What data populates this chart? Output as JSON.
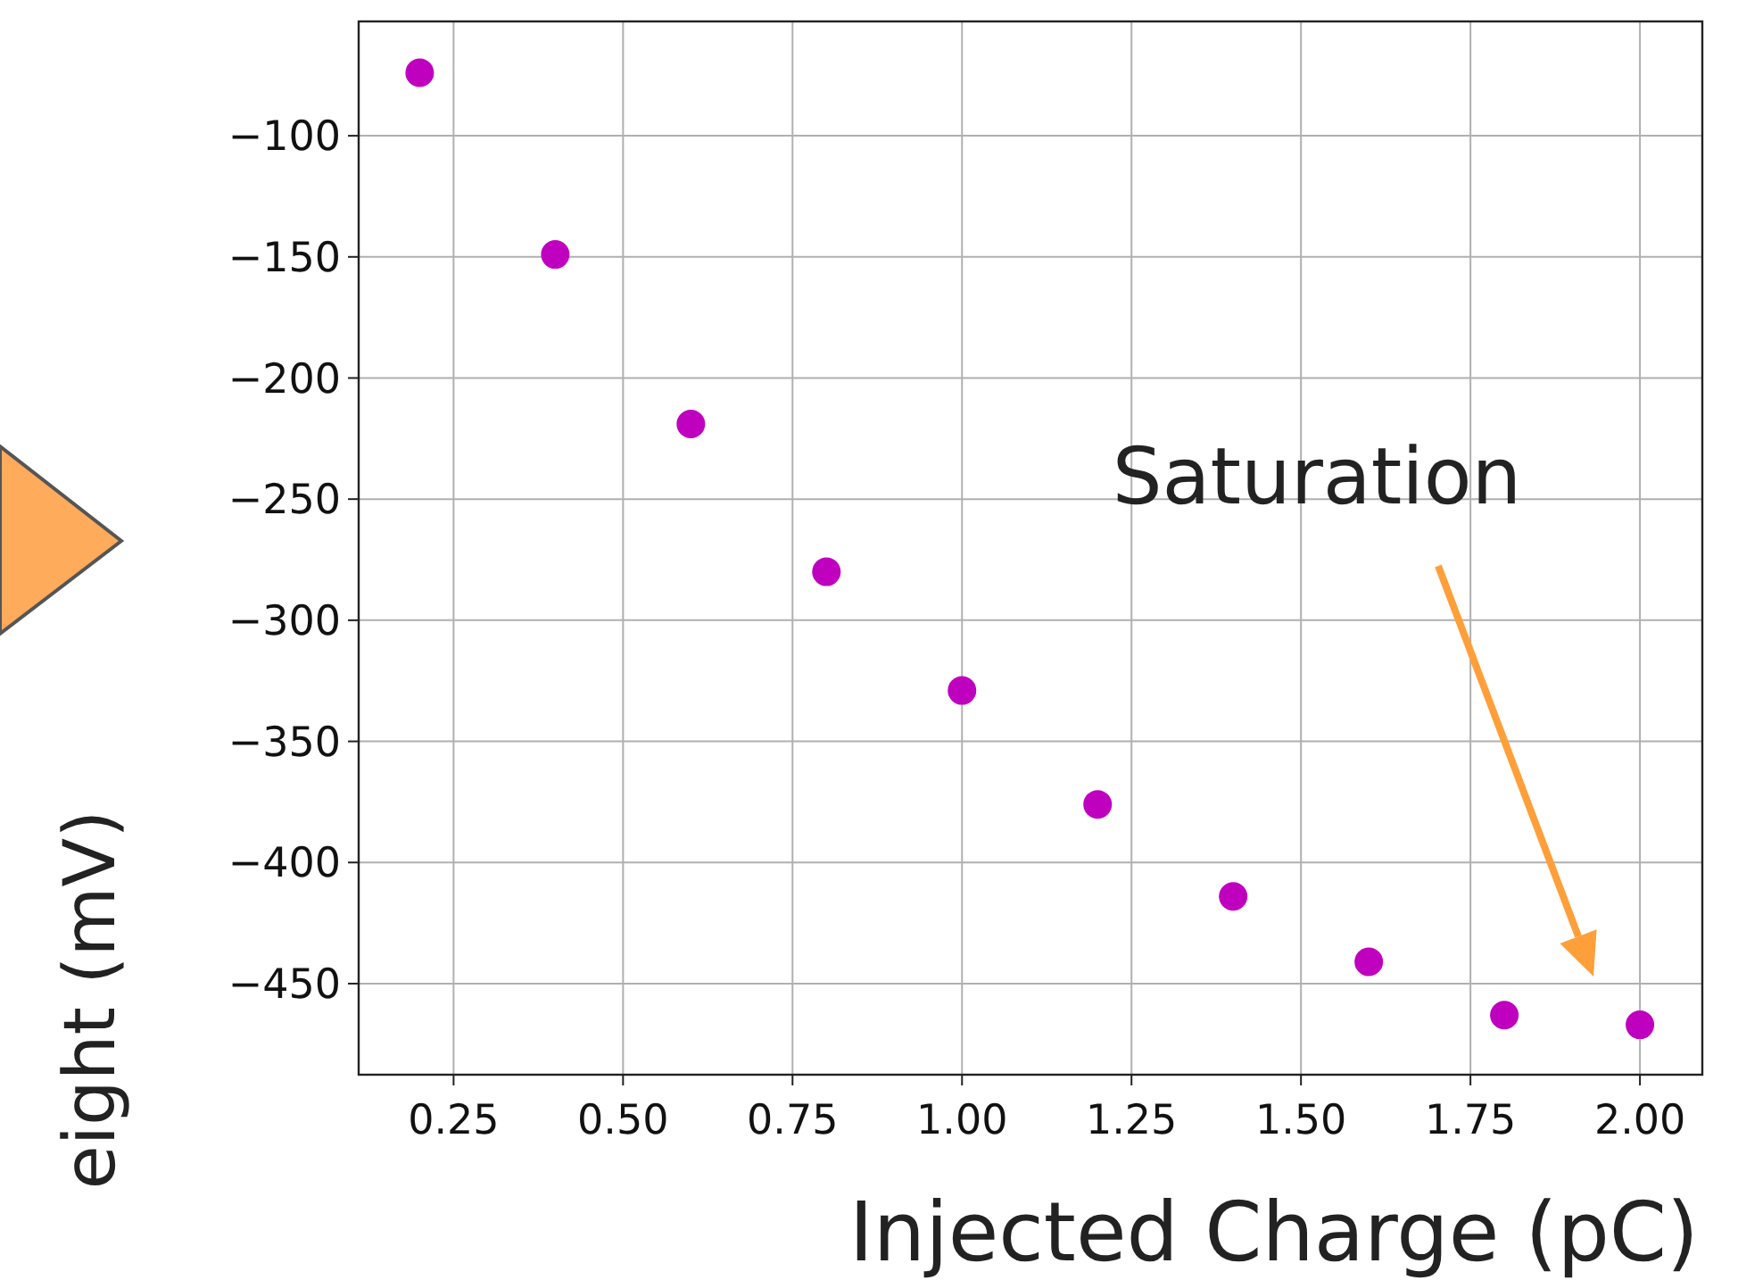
{
  "chart_data": {
    "type": "scatter",
    "xlabel": "Injected Charge (pC)",
    "ylabel": "eight (mV)",
    "x": [
      0.2,
      0.4,
      0.6,
      0.8,
      1.0,
      1.2,
      1.4,
      1.6,
      1.8,
      2.0
    ],
    "series": [
      {
        "color": "#bf00bf",
        "values": [
          -74,
          -149,
          -219,
          -280,
          -329,
          -376,
          -414,
          -441,
          -463,
          -467
        ]
      }
    ],
    "xlim": [
      0.11,
      2.092
    ],
    "ylim": [
      -487.6,
      -52.8
    ],
    "xticks": [
      {
        "value": 0.25,
        "label": "0.25"
      },
      {
        "value": 0.5,
        "label": "0.50"
      },
      {
        "value": 0.75,
        "label": "0.75"
      },
      {
        "value": 1.0,
        "label": "1.00"
      },
      {
        "value": 1.25,
        "label": "1.25"
      },
      {
        "value": 1.5,
        "label": "1.50"
      },
      {
        "value": 1.75,
        "label": "1.75"
      },
      {
        "value": 2.0,
        "label": "2.00"
      }
    ],
    "yticks": [
      {
        "value": -100,
        "label": "−100"
      },
      {
        "value": -150,
        "label": "−150"
      },
      {
        "value": -200,
        "label": "−200"
      },
      {
        "value": -250,
        "label": "−250"
      },
      {
        "value": -300,
        "label": "−300"
      },
      {
        "value": -350,
        "label": "−350"
      },
      {
        "value": -400,
        "label": "−400"
      },
      {
        "value": -450,
        "label": "−450"
      }
    ],
    "grid": true,
    "marker": "circle",
    "annotations": [
      "Saturation"
    ]
  }
}
